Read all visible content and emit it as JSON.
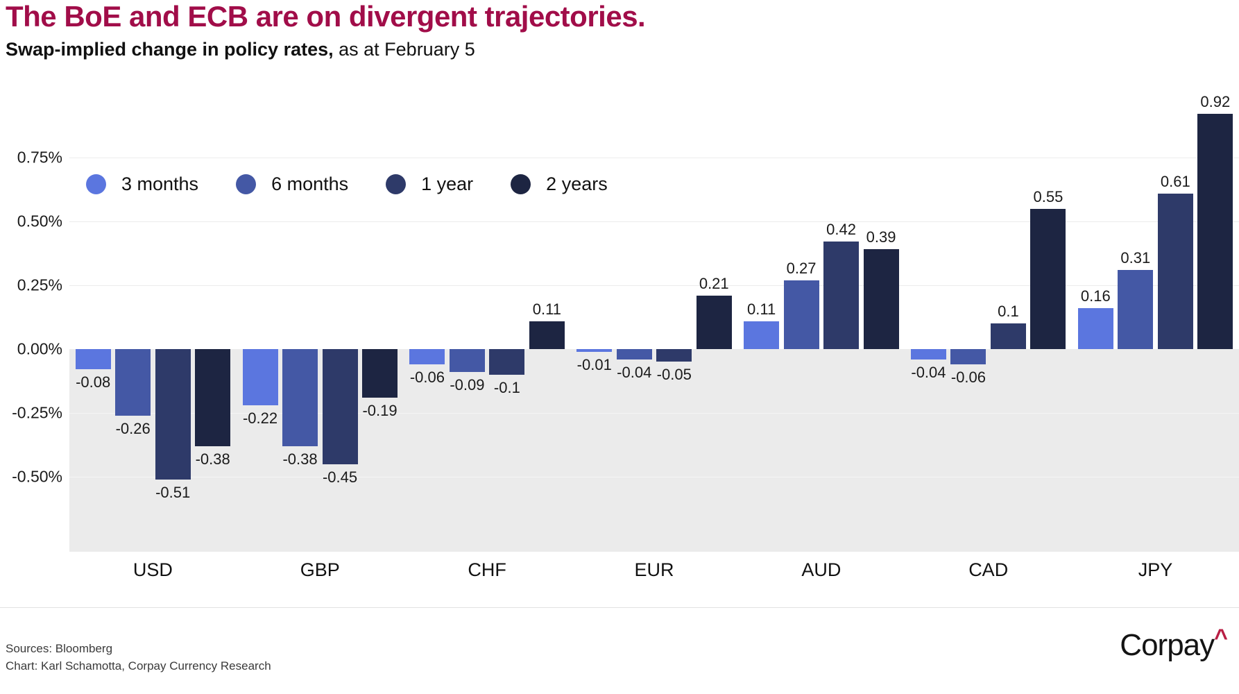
{
  "header": {
    "title": "The BoE and ECB are on divergent trajectories.",
    "subtitle_bold": "Swap-implied change in policy rates,",
    "subtitle_regular": " as at February 5"
  },
  "chart_data": {
    "type": "bar",
    "title": "The BoE and ECB are on divergent trajectories.",
    "subtitle": "Swap-implied change in policy rates, as at February 5",
    "categories": [
      "USD",
      "GBP",
      "CHF",
      "EUR",
      "AUD",
      "CAD",
      "JPY"
    ],
    "series": [
      {
        "name": "3 months",
        "color": "#5B76DF",
        "values": [
          -0.08,
          -0.22,
          -0.06,
          -0.01,
          0.11,
          -0.04,
          0.16
        ]
      },
      {
        "name": "6 months",
        "color": "#4458A5",
        "values": [
          -0.26,
          -0.38,
          -0.09,
          -0.04,
          0.27,
          -0.06,
          0.31
        ]
      },
      {
        "name": "1 year",
        "color": "#2E3A69",
        "values": [
          -0.51,
          -0.45,
          -0.1,
          -0.05,
          0.42,
          0.1,
          0.61
        ]
      },
      {
        "name": "2 years",
        "color": "#1D2542",
        "values": [
          -0.38,
          -0.19,
          0.11,
          0.21,
          0.39,
          0.55,
          0.92
        ]
      }
    ],
    "y_axis": {
      "unit": "%",
      "ticks": [
        {
          "label": "0.75%",
          "value": 0.75
        },
        {
          "label": "0.50%",
          "value": 0.5
        },
        {
          "label": "0.25%",
          "value": 0.25
        },
        {
          "label": "0.00%",
          "value": 0
        },
        {
          "label": "-0.25%",
          "value": -0.25
        },
        {
          "label": "-0.50%",
          "value": -0.5
        }
      ],
      "min": -0.79,
      "max": 1.0
    },
    "legend_position": "top-left-inside",
    "grid": true,
    "value_labels": true,
    "negative_region_fill": "#EBEBEB"
  },
  "colors": {
    "title_accent": "#A10D49",
    "grid_above_zero": "#ECECEC",
    "grid_below_zero": "#F5F5F5",
    "logo_caret": "#B81F45"
  },
  "footer": {
    "source_line": "Sources: Bloomberg",
    "credit_line": "Chart: Karl Schamotta, Corpay Currency Research",
    "logo_text": "Corpay",
    "logo_caret": "^"
  }
}
